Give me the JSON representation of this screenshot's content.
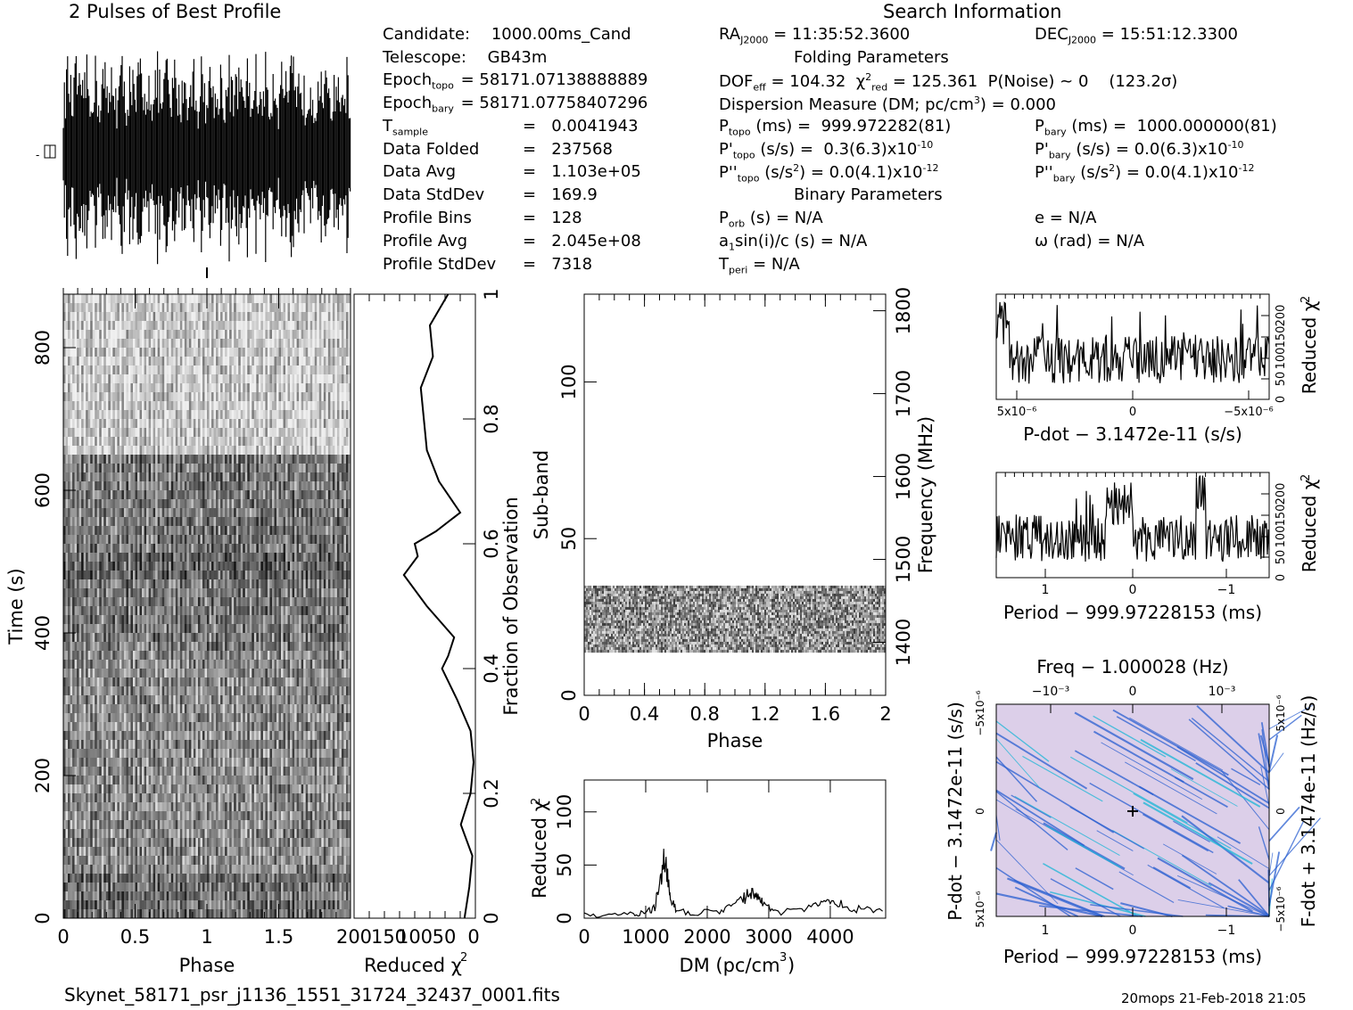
{
  "header": {
    "left_title": "2 Pulses of Best Profile",
    "right_title": "Search Information"
  },
  "info_left": [
    {
      "label": "Candidate:",
      "value": "1000.00ms_Cand"
    },
    {
      "label": "Telescope:",
      "value": "GB43m"
    },
    {
      "label": "Epoch",
      "sub": "topo",
      "value": "= 58171.07138888889"
    },
    {
      "label": "Epoch",
      "sub": "bary",
      "value": "= 58171.07758407296"
    },
    {
      "label": "T",
      "sub": "sample",
      "value": "0.0041943"
    },
    {
      "label": "Data Folded",
      "value": "237568"
    },
    {
      "label": "Data Avg",
      "value": "1.103e+05"
    },
    {
      "label": "Data StdDev",
      "value": "169.9"
    },
    {
      "label": "Profile Bins",
      "value": "128"
    },
    {
      "label": "Profile Avg",
      "value": "2.045e+08"
    },
    {
      "label": "Profile StdDev",
      "value": "7318"
    }
  ],
  "info_mid": {
    "ra": "= 11:35:52.3600",
    "ra_label": "RA",
    "ra_sub": "J2000",
    "folding_header": "Folding Parameters",
    "dof": "DOF",
    "dof_sub": "eff",
    "dof_value": "= 104.32",
    "chi_label": "χ",
    "chi_sup": "2",
    "chi_sub": "red",
    "chi_value": "= 125.361",
    "pnoise": "P(Noise) ~ 0",
    "sigma": "(123.2σ)",
    "dm_line": "Dispersion Measure (DM; pc/cm",
    "dm_sup": "3",
    "dm_tail": ") = 0.000",
    "ptopo_label": "P",
    "ptopo_sub": "topo",
    "ptopo_value": "(ms) =  999.972282(81)",
    "pdot_topo_label": "P'",
    "pdot_topo_sub": "topo",
    "pdot_topo_value": "(s/s) =  0.3(6.3)x10",
    "pdot_topo_exp": "-10",
    "pddot_topo_label": "P''",
    "pddot_topo_sub": "topo",
    "pddot_topo_value": "(s/s",
    "pddot_topo_sup": "2",
    "pddot_topo_tail": ") = 0.0(4.1)x10",
    "pddot_topo_exp": "-12",
    "binary_header": "Binary Parameters",
    "porb": "P",
    "porb_sub": "orb",
    "porb_value": "(s) = N/A",
    "a1": "a",
    "a1_sub": "1",
    "a1_value": "sin(i)/c (s) = N/A",
    "tperi": "T",
    "tperi_sub": "peri",
    "tperi_value": "= N/A"
  },
  "info_right": {
    "dec_label": "DEC",
    "dec_sub": "J2000",
    "dec": "= 15:51:12.3300",
    "pbary_label": "P",
    "pbary_sub": "bary",
    "pbary_value": "(ms) =  1000.000000(81)",
    "pdot_bary_label": "P'",
    "pdot_bary_sub": "bary",
    "pdot_bary_value": "(s/s) = 0.0(6.3)x10",
    "pdot_bary_exp": "-10",
    "pddot_bary_label": "P''",
    "pddot_bary_sub": "bary",
    "pddot_bary_value": "(s/s",
    "pddot_bary_sup": "2",
    "pddot_bary_tail": ") = 0.0(4.1)x10",
    "pddot_bary_exp": "-12",
    "e": "e = N/A",
    "omega": "ω (rad) = N/A"
  },
  "footer": {
    "filename": "Skynet_58171_psr_j1136_1551_31724_32437_0001.fits",
    "stamp": "20mops 21-Feb-2018 21:05"
  },
  "colors": {
    "ink": "#000000",
    "map_bg": "#d8c8e8",
    "map_line": "#2a5fd0",
    "map_hi": "#19b5d6"
  },
  "chart_data": [
    {
      "id": "profile",
      "type": "line",
      "title": "2 Pulses of Best Profile",
      "note": "two repeated pulse periods of a noisy square-like profile"
    },
    {
      "id": "time-phase",
      "type": "heatmap",
      "xlabel": "Phase",
      "ylabel": "Time (s)",
      "right_label": "Fraction of Observation",
      "xticks": [
        "0",
        "0.5",
        "1",
        "1.5"
      ],
      "yticks": [
        "0",
        "200",
        "400",
        "600",
        "800"
      ],
      "right_ticks": [
        "0",
        "0.2",
        "0.4",
        "0.6",
        "0.8",
        "1"
      ],
      "xlim": [
        0,
        2
      ],
      "ylim": [
        0,
        1000
      ]
    },
    {
      "id": "time-chi2",
      "type": "line",
      "xlabel": "Reduced χ²",
      "xtick_labels": [
        "200",
        "150",
        "100",
        "50",
        "0"
      ],
      "fraction": [
        0,
        0.05,
        0.1,
        0.15,
        0.2,
        0.25,
        0.3,
        0.35,
        0.4,
        0.42,
        0.45,
        0.5,
        0.55,
        0.58,
        0.6,
        0.62,
        0.65,
        0.7,
        0.75,
        0.8,
        0.85,
        0.9,
        0.95,
        1.0
      ],
      "chi2": [
        18,
        10,
        5,
        24,
        8,
        3,
        8,
        30,
        55,
        45,
        35,
        80,
        118,
        95,
        100,
        65,
        25,
        60,
        80,
        85,
        90,
        70,
        75,
        45
      ]
    },
    {
      "id": "subband-phase",
      "type": "heatmap",
      "xlabel": "Phase",
      "ylabel": "Sub-band",
      "right_label": "Frequency (MHz)",
      "xticks": [
        "0",
        "0.4",
        "0.8",
        "1.2",
        "1.6",
        "2"
      ],
      "yticks": [
        "0",
        "50",
        "100"
      ],
      "right_ticks": [
        "1400",
        "1500",
        "1600",
        "1700",
        "1800"
      ],
      "band_subbands": [
        14,
        35
      ]
    },
    {
      "id": "dm-chi2",
      "type": "line",
      "xlabel": "DM (pc/cm³)",
      "ylabel": "Reduced χ²",
      "xticks": [
        "0",
        "1000",
        "2000",
        "3000",
        "4000"
      ],
      "yticks": [
        "0",
        "50",
        "100"
      ],
      "xlim": [
        0,
        4900
      ],
      "ylim": [
        0,
        130
      ],
      "x": [
        0,
        400,
        800,
        1000,
        1150,
        1250,
        1300,
        1350,
        1400,
        1500,
        1800,
        2200,
        2450,
        2600,
        2700,
        2800,
        2900,
        3100,
        3500,
        3800,
        4000,
        4200,
        4500,
        4900
      ],
      "y": [
        3,
        3,
        4,
        6,
        10,
        40,
        58,
        42,
        20,
        6,
        5,
        6,
        12,
        18,
        25,
        20,
        14,
        6,
        6,
        12,
        16,
        12,
        8,
        6
      ]
    },
    {
      "id": "pdot-chi2",
      "type": "line",
      "xlabel": "P-dot − 3.1472e-11 (s/s)",
      "ylabel": "Reduced χ²",
      "xtick_labels": [
        "5x10⁻⁶",
        "0",
        "−5x10⁻⁶"
      ],
      "ytick_labels": [
        "0",
        "50",
        "100",
        "150",
        "200"
      ]
    },
    {
      "id": "period-chi2",
      "type": "line",
      "xlabel": "Period − 999.97228153 (ms)",
      "ylabel": "Reduced χ²",
      "xtick_labels": [
        "1",
        "0",
        "−1"
      ],
      "ytick_labels": [
        "0",
        "50",
        "100",
        "150",
        "200"
      ]
    },
    {
      "id": "pdot-period-map",
      "type": "heatmap",
      "top_label": "Freq − 1.000028 (Hz)",
      "top_ticks": [
        "−10⁻³",
        "0",
        "10⁻³"
      ],
      "xlabel": "Period − 999.97228153 (ms)",
      "xtick_labels": [
        "1",
        "0",
        "−1"
      ],
      "ylabel": "P-dot − 3.1472e-11 (s/s)",
      "ytick_labels": [
        "−5x10⁻⁶",
        "0",
        "5x10⁻⁶"
      ],
      "right_label": "F-dot + 3.1474e-11 (Hz/s)",
      "right_ticks": [
        "5x10⁻⁶",
        "0",
        "−5x10⁻⁶"
      ]
    }
  ]
}
